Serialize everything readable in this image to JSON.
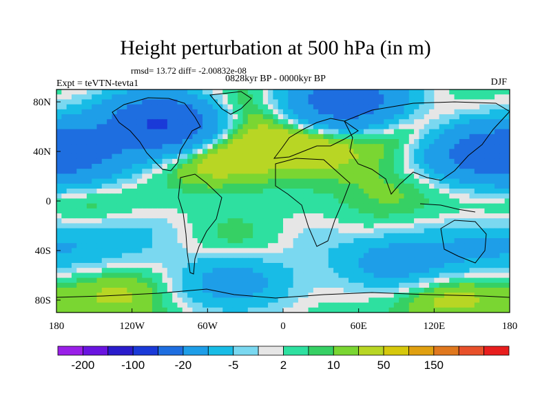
{
  "chart_data": {
    "type": "heatmap",
    "title": "Height perturbation at 500 hPa (in m)",
    "stats": "rmsd= 13.72 diff= -2.00832e-08",
    "period": "0828kyr BP - 0000kyr BP",
    "experiment": "Expt = teVTN-tevta1",
    "season": "DJF",
    "projection": "cylindrical-equidistant",
    "xlim": [
      -180,
      180
    ],
    "ylim": [
      -90,
      90
    ],
    "x_ticks": [
      {
        "value": -180,
        "label": "180"
      },
      {
        "value": -120,
        "label": "120W"
      },
      {
        "value": -60,
        "label": "60W"
      },
      {
        "value": 0,
        "label": "0"
      },
      {
        "value": 60,
        "label": "60E"
      },
      {
        "value": 120,
        "label": "120E"
      },
      {
        "value": 180,
        "label": "180"
      }
    ],
    "y_ticks": [
      {
        "value": 80,
        "label": "80N"
      },
      {
        "value": 40,
        "label": "40N"
      },
      {
        "value": 0,
        "label": "0"
      },
      {
        "value": -40,
        "label": "40S"
      },
      {
        "value": -80,
        "label": "80S"
      }
    ],
    "colorbar": {
      "colors": [
        "#9a1fe8",
        "#6a14e0",
        "#2a1ccc",
        "#1a3ad8",
        "#1e6ee0",
        "#1e9ee8",
        "#18bce6",
        "#7ad8f0",
        "#e6e6e6",
        "#2ee0a0",
        "#36d064",
        "#7ad632",
        "#b8d624",
        "#d6c80c",
        "#e0a010",
        "#e0781e",
        "#e8502a",
        "#e81e1e"
      ],
      "tick_values": [
        -200,
        -100,
        -20,
        -5,
        2,
        10,
        50,
        150
      ],
      "tick_labels": [
        "-200",
        "-100",
        "-20",
        "-5",
        "2",
        "10",
        "50",
        "150"
      ]
    },
    "anomaly_centers": [
      {
        "lon": -170,
        "lat": 38,
        "value": -60
      },
      {
        "lon": -95,
        "lat": 62,
        "value": -110
      },
      {
        "lon": 50,
        "lat": 80,
        "value": -80
      },
      {
        "lon": 150,
        "lat": 40,
        "value": -50
      },
      {
        "lon": -60,
        "lat": 40,
        "value": 25
      },
      {
        "lon": -40,
        "lat": 72,
        "value": 15
      },
      {
        "lon": 20,
        "lat": 45,
        "value": 20
      },
      {
        "lon": 100,
        "lat": 55,
        "value": 15
      },
      {
        "lon": -150,
        "lat": -10,
        "value": 10
      },
      {
        "lon": -120,
        "lat": -25,
        "value": -12
      },
      {
        "lon": -165,
        "lat": -35,
        "value": -15
      },
      {
        "lon": -30,
        "lat": -35,
        "value": 8
      },
      {
        "lon": 20,
        "lat": -30,
        "value": -8
      },
      {
        "lon": 70,
        "lat": -25,
        "value": 4
      },
      {
        "lon": 90,
        "lat": -50,
        "value": -30
      },
      {
        "lon": 145,
        "lat": -40,
        "value": -15
      },
      {
        "lon": -40,
        "lat": -65,
        "value": -30
      },
      {
        "lon": 130,
        "lat": -75,
        "value": 15
      },
      {
        "lon": -130,
        "lat": -75,
        "value": 12
      },
      {
        "lon": 90,
        "lat": 10,
        "value": 6
      }
    ]
  }
}
